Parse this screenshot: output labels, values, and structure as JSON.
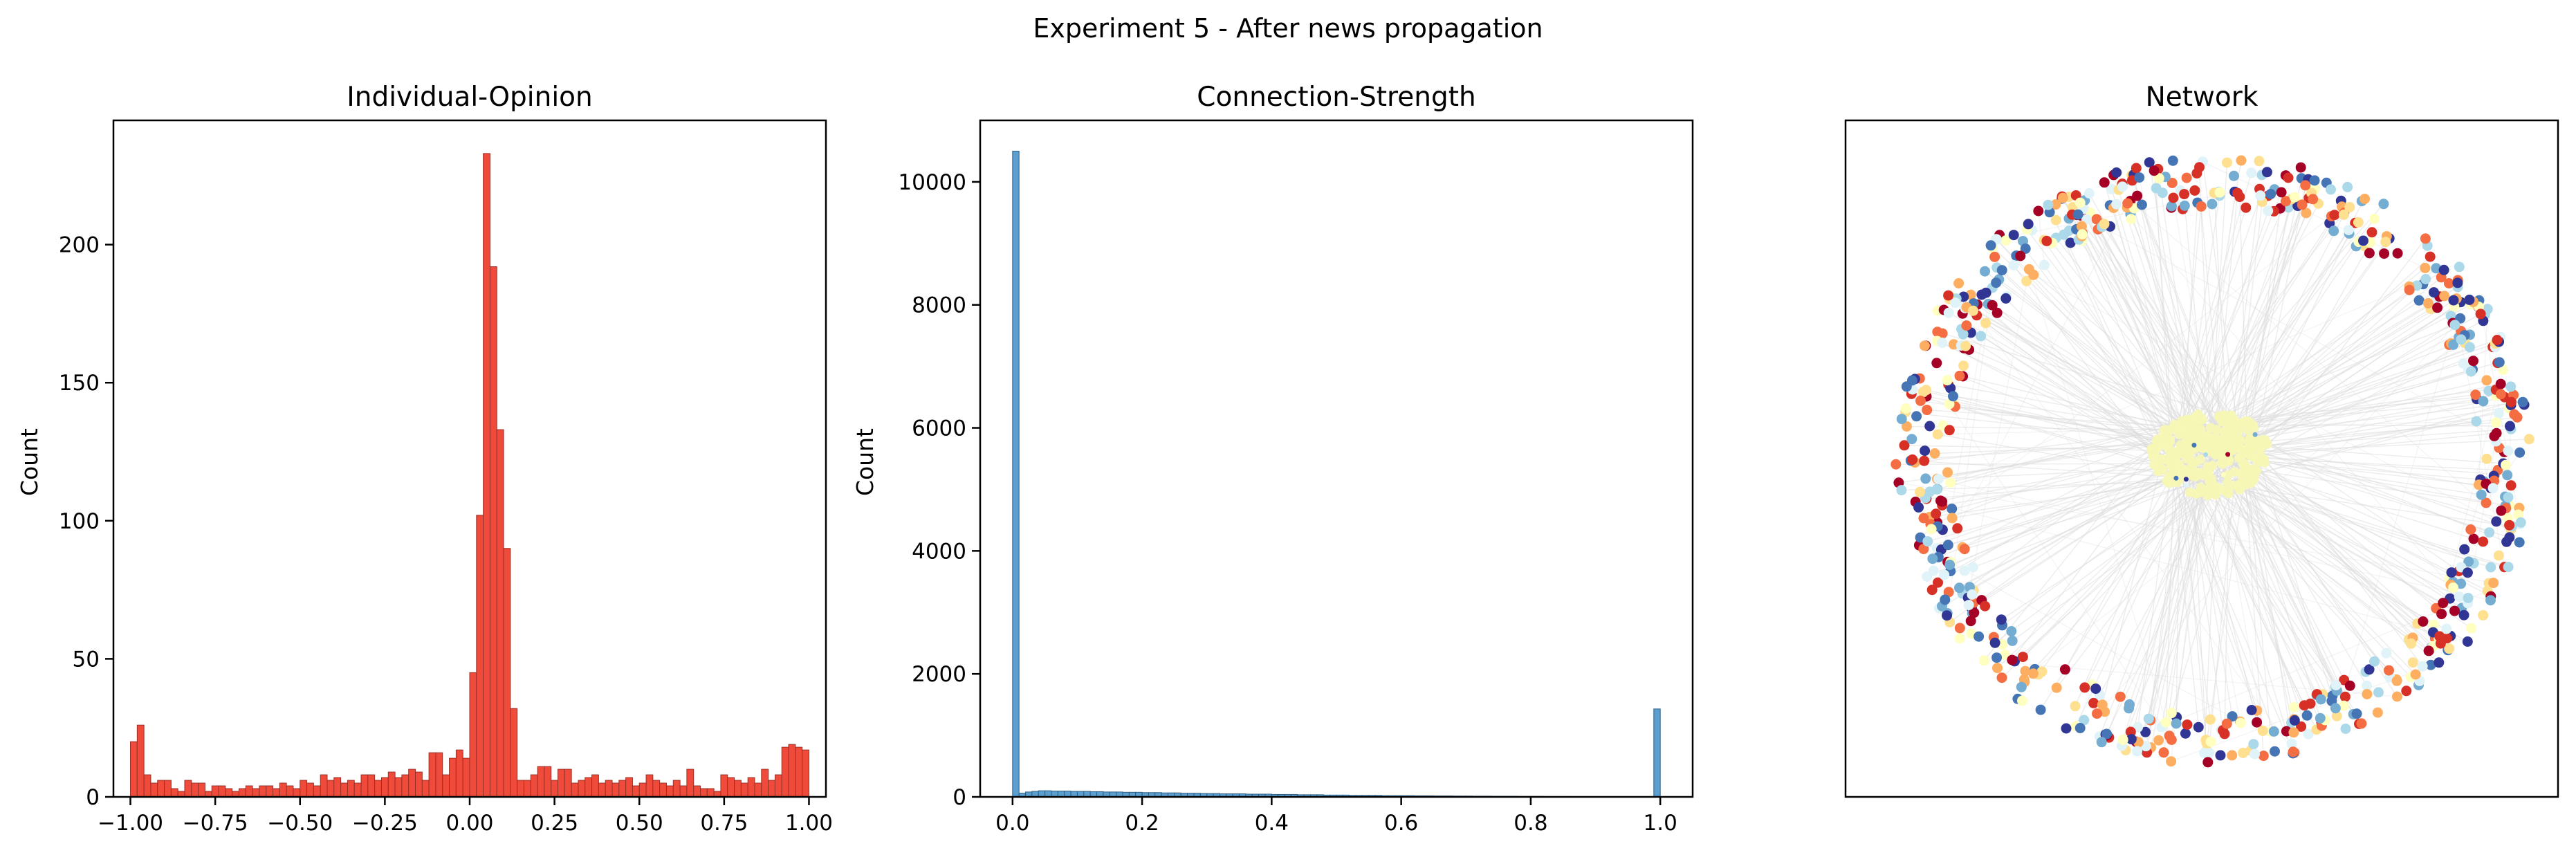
{
  "figure": {
    "suptitle": "Experiment 5 - After news propagation"
  },
  "chart_data": [
    {
      "type": "bar",
      "title": "Individual-Opinion",
      "xlabel": "",
      "ylabel": "Count",
      "xlim": [
        -1.05,
        1.05
      ],
      "ylim": [
        0,
        245
      ],
      "xticks": [
        -1.0,
        -0.75,
        -0.5,
        -0.25,
        0.0,
        0.25,
        0.5,
        0.75,
        1.0
      ],
      "xtick_labels": [
        "−1.00",
        "−0.75",
        "−0.50",
        "−0.25",
        "0.00",
        "0.25",
        "0.50",
        "0.75",
        "1.00"
      ],
      "yticks": [
        0,
        50,
        100,
        150,
        200
      ],
      "ytick_labels": [
        "0",
        "50",
        "100",
        "150",
        "200"
      ],
      "bin_start": -1.0,
      "bin_width": 0.02,
      "bar_color": "#f04a3a",
      "edge_color": "#9a2f26",
      "values": [
        20,
        26,
        8,
        5,
        6,
        6,
        3,
        2,
        6,
        5,
        5,
        2,
        4,
        4,
        3,
        2,
        3,
        4,
        3,
        4,
        4,
        3,
        5,
        4,
        3,
        6,
        5,
        4,
        8,
        6,
        7,
        5,
        6,
        5,
        8,
        8,
        6,
        7,
        9,
        7,
        8,
        10,
        9,
        6,
        16,
        16,
        8,
        14,
        17,
        14,
        45,
        102,
        233,
        192,
        133,
        90,
        32,
        6,
        6,
        8,
        11,
        11,
        6,
        10,
        10,
        5,
        6,
        7,
        8,
        5,
        6,
        5,
        6,
        7,
        4,
        5,
        8,
        6,
        5,
        4,
        6,
        4,
        10,
        4,
        3,
        3,
        2,
        8,
        7,
        6,
        5,
        7,
        5,
        10,
        6,
        8,
        18,
        19,
        18,
        17
      ]
    },
    {
      "type": "bar",
      "title": "Connection-Strength",
      "xlabel": "",
      "ylabel": "Count",
      "xlim": [
        -0.05,
        1.05
      ],
      "ylim": [
        0,
        11000
      ],
      "xticks": [
        0.0,
        0.2,
        0.4,
        0.6,
        0.8,
        1.0
      ],
      "xtick_labels": [
        "0.0",
        "0.2",
        "0.4",
        "0.6",
        "0.8",
        "1.0"
      ],
      "yticks": [
        0,
        2000,
        4000,
        6000,
        8000,
        10000
      ],
      "ytick_labels": [
        "0",
        "2000",
        "4000",
        "6000",
        "8000",
        "10000"
      ],
      "bin_start": 0.0,
      "bin_width": 0.01,
      "bar_color": "#5b9ed0",
      "edge_color": "#2f5f84",
      "values": [
        10500,
        60,
        80,
        90,
        100,
        100,
        95,
        95,
        95,
        90,
        90,
        90,
        85,
        85,
        80,
        80,
        80,
        75,
        75,
        75,
        70,
        70,
        70,
        65,
        65,
        65,
        60,
        60,
        60,
        55,
        55,
        55,
        50,
        50,
        50,
        50,
        45,
        45,
        45,
        45,
        40,
        40,
        40,
        40,
        35,
        35,
        35,
        35,
        30,
        30,
        30,
        30,
        25,
        25,
        25,
        25,
        25,
        20,
        20,
        20,
        20,
        20,
        18,
        18,
        18,
        16,
        16,
        16,
        14,
        14,
        14,
        12,
        12,
        12,
        10,
        10,
        10,
        10,
        8,
        8,
        8,
        8,
        6,
        6,
        6,
        6,
        5,
        5,
        5,
        5,
        4,
        4,
        4,
        4,
        3,
        3,
        3,
        3,
        3,
        1430
      ]
    },
    {
      "type": "scatter",
      "title": "Network",
      "xlabel": "",
      "ylabel": "",
      "xticks": [],
      "yticks": [],
      "description_kind": "network-graph",
      "ring_node_count": 720,
      "core_node_count": 260,
      "edge_color": "#dcdcdc",
      "node_palette": [
        "#a50026",
        "#d73027",
        "#f46d43",
        "#fdae61",
        "#fee090",
        "#ffffbf",
        "#e0f3f8",
        "#abd9e9",
        "#74add1",
        "#4575b4",
        "#313695"
      ],
      "core_color": "#f7f7b5"
    }
  ]
}
